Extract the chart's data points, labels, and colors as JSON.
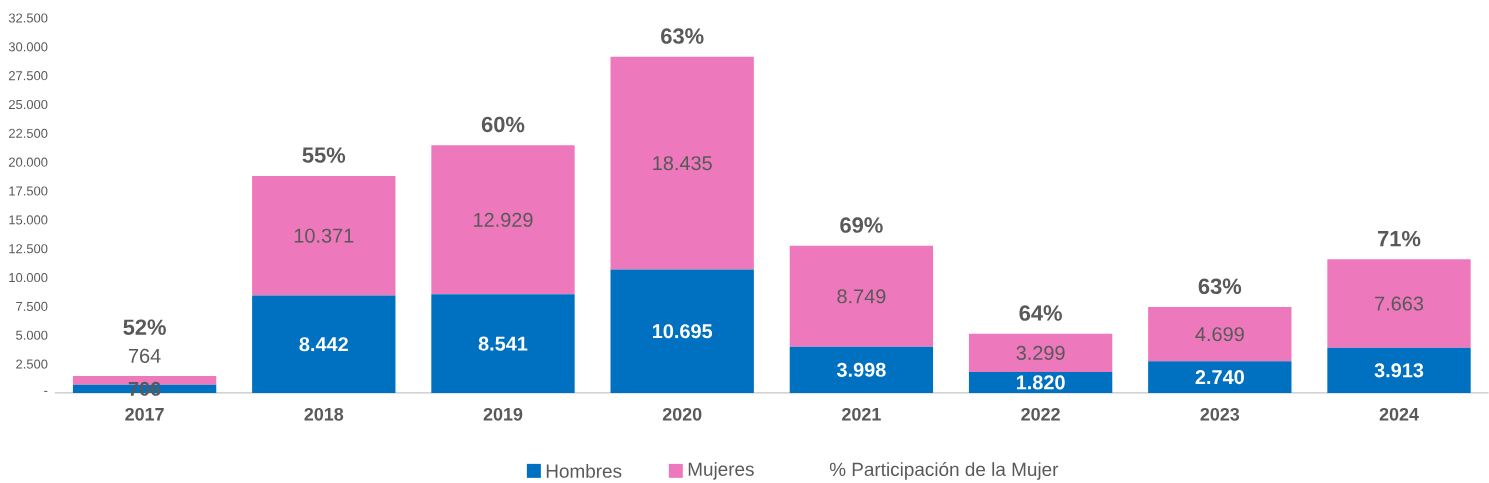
{
  "chart_data": {
    "type": "bar",
    "stacked": true,
    "legend": "bottom",
    "categories": [
      "2017",
      "2018",
      "2019",
      "2020",
      "2021",
      "2022",
      "2023",
      "2024"
    ],
    "series": [
      {
        "name": "Hombres",
        "color": "#0070c0",
        "values": [
          706,
          8442,
          8541,
          10695,
          3998,
          1820,
          2740,
          3913
        ],
        "value_labels": [
          "706",
          "8.442",
          "8.541",
          "10.695",
          "3.998",
          "1.820",
          "2.740",
          "3.913"
        ]
      },
      {
        "name": "Mujeres",
        "color": "#ee78bc",
        "values": [
          764,
          10371,
          12929,
          18435,
          8749,
          3299,
          4699,
          7663
        ],
        "value_labels": [
          "764",
          "10.371",
          "12.929",
          "18.435",
          "8.749",
          "3.299",
          "4.699",
          "7.663"
        ]
      }
    ],
    "ylim": [
      0,
      32500
    ],
    "yticks": [
      {
        "value": 0,
        "label": "-"
      },
      {
        "value": 2500,
        "label": "2.500"
      },
      {
        "value": 5000,
        "label": "5.000"
      },
      {
        "value": 7500,
        "label": "7.500"
      },
      {
        "value": 10000,
        "label": "10.000"
      },
      {
        "value": 12500,
        "label": "12.500"
      },
      {
        "value": 15000,
        "label": "15.000"
      },
      {
        "value": 17500,
        "label": "17.500"
      },
      {
        "value": 20000,
        "label": "20.000"
      },
      {
        "value": 22500,
        "label": "22.500"
      },
      {
        "value": 25000,
        "label": "25.000"
      },
      {
        "value": 27500,
        "label": "27.500"
      },
      {
        "value": 30000,
        "label": "30.000"
      },
      {
        "value": 32500,
        "label": "32.500"
      }
    ],
    "annotations": [
      {
        "text": "52%",
        "x": "2017",
        "y": 1470
      },
      {
        "text": "55%",
        "x": "2018",
        "y": 18813
      },
      {
        "text": "60%",
        "x": "2019",
        "y": 21470
      },
      {
        "text": "63%",
        "x": "2020",
        "y": 29130
      },
      {
        "text": "69%",
        "x": "2021",
        "y": 12747
      },
      {
        "text": "64%",
        "x": "2022",
        "y": 5119
      },
      {
        "text": "63%",
        "x": "2023",
        "y": 7439
      },
      {
        "text": "71%",
        "x": "2024",
        "y": 11576
      },
      "% Participación de la Mujer"
    ]
  }
}
